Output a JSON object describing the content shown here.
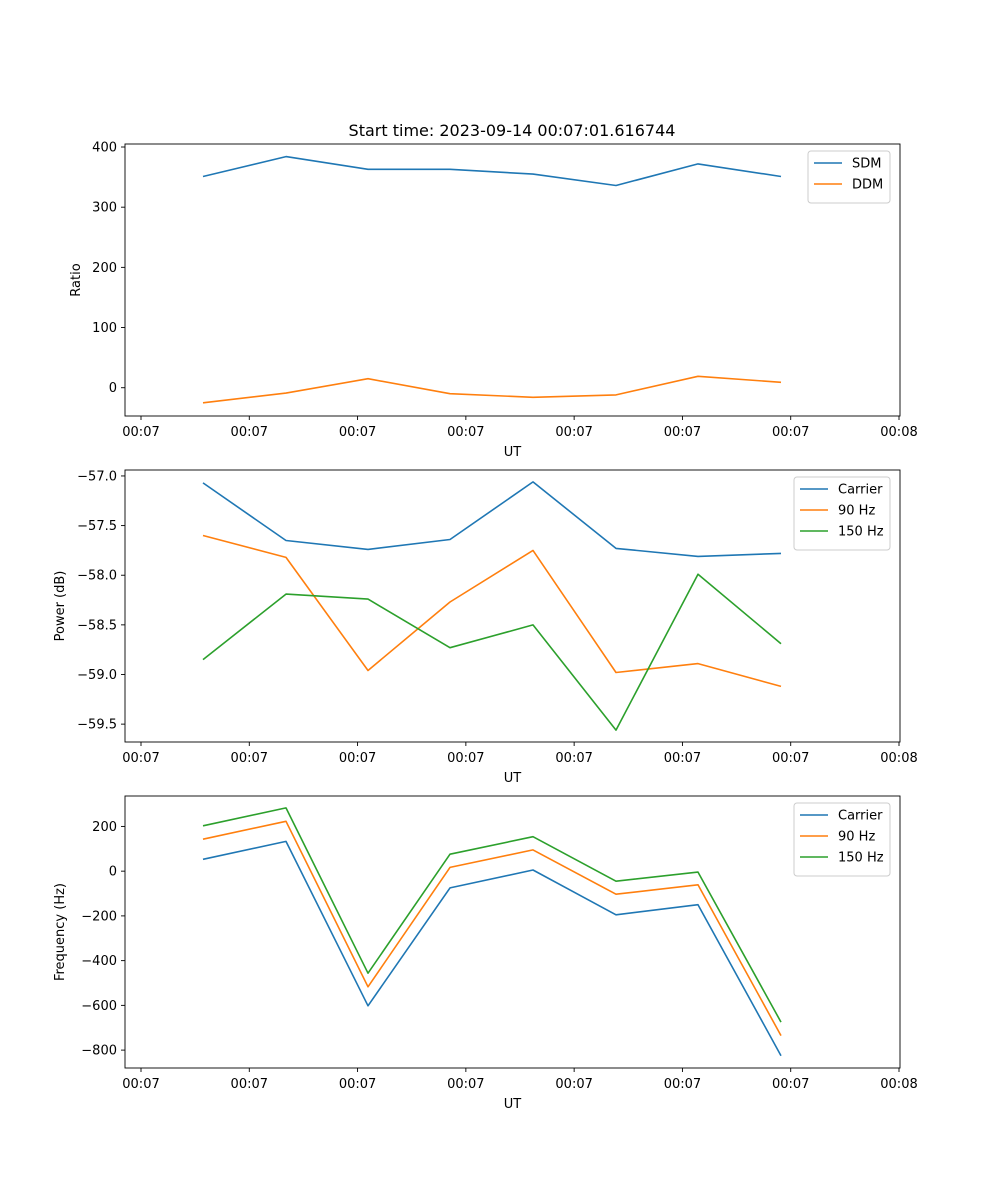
{
  "figure": {
    "title": "Start time: 2023-09-14 00:07:01.616744"
  },
  "chart_data": [
    {
      "type": "line",
      "xlabel": "UT",
      "ylabel": "Ratio",
      "x_tick_labels": [
        "00:07",
        "00:07",
        "00:07",
        "00:07",
        "00:07",
        "00:07",
        "00:07",
        "00:08"
      ],
      "y_ticks": [
        0,
        100,
        200,
        300,
        400
      ],
      "ylim": [
        -47,
        405
      ],
      "x_sample_index": [
        0,
        1,
        2,
        3,
        4,
        5,
        6,
        7
      ],
      "legend_position": "top-right",
      "series": [
        {
          "name": "SDM",
          "color": "#1f77b4",
          "values": [
            351,
            384,
            363,
            363,
            355,
            336,
            372,
            351
          ]
        },
        {
          "name": "DDM",
          "color": "#ff7f0e",
          "values": [
            -25,
            -9,
            15,
            -10,
            -16,
            -12,
            19,
            9
          ]
        }
      ]
    },
    {
      "type": "line",
      "xlabel": "UT",
      "ylabel": "Power (dB)",
      "x_tick_labels": [
        "00:07",
        "00:07",
        "00:07",
        "00:07",
        "00:07",
        "00:07",
        "00:07",
        "00:08"
      ],
      "y_ticks": [
        -57.0,
        -57.5,
        -58.0,
        -58.5,
        -59.0,
        -59.5
      ],
      "y_tick_labels": [
        "−57.0",
        "−57.5",
        "−58.0",
        "−58.5",
        "−59.0",
        "−59.5"
      ],
      "ylim": [
        -59.68,
        -56.94
      ],
      "x_sample_index": [
        0,
        1,
        2,
        3,
        4,
        5,
        6,
        7
      ],
      "legend_position": "top-right",
      "series": [
        {
          "name": "Carrier",
          "color": "#1f77b4",
          "values": [
            -57.07,
            -57.65,
            -57.74,
            -57.64,
            -57.06,
            -57.73,
            -57.81,
            -57.78
          ]
        },
        {
          "name": "90 Hz",
          "color": "#ff7f0e",
          "values": [
            -57.6,
            -57.82,
            -58.96,
            -58.27,
            -57.75,
            -58.98,
            -58.89,
            -59.12
          ]
        },
        {
          "name": "150 Hz",
          "color": "#2ca02c",
          "values": [
            -58.85,
            -58.19,
            -58.24,
            -58.73,
            -58.5,
            -59.56,
            -57.99,
            -58.69
          ]
        }
      ]
    },
    {
      "type": "line",
      "xlabel": "UT",
      "ylabel": "Frequency (Hz)",
      "x_tick_labels": [
        "00:07",
        "00:07",
        "00:07",
        "00:07",
        "00:07",
        "00:07",
        "00:07",
        "00:08"
      ],
      "y_ticks": [
        200,
        0,
        -200,
        -400,
        -600,
        -800
      ],
      "y_tick_labels": [
        "200",
        "0",
        "−200",
        "−400",
        "−600",
        "−800"
      ],
      "ylim": [
        -880,
        336
      ],
      "x_sample_index": [
        0,
        1,
        2,
        3,
        4,
        5,
        6,
        7
      ],
      "legend_position": "top-right",
      "series": [
        {
          "name": "Carrier",
          "color": "#1f77b4",
          "values": [
            53,
            133,
            -602,
            -75,
            5,
            -195,
            -150,
            -825
          ]
        },
        {
          "name": "90 Hz",
          "color": "#ff7f0e",
          "values": [
            143,
            223,
            -517,
            17,
            95,
            -103,
            -61,
            -735
          ]
        },
        {
          "name": "150 Hz",
          "color": "#2ca02c",
          "values": [
            203,
            283,
            -456,
            76,
            154,
            -45,
            -4,
            -675
          ]
        }
      ]
    }
  ]
}
